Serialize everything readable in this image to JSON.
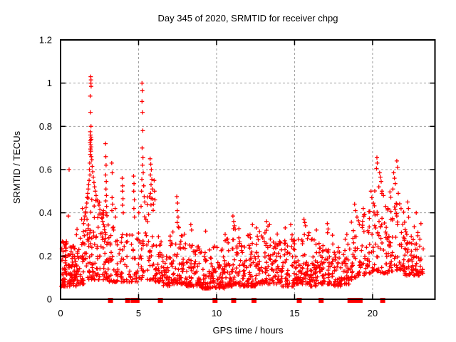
{
  "chart_data": {
    "type": "scatter",
    "title": "Day 345 of 2020, SRMTID for receiver chpg",
    "xlabel": "GPS time / hours",
    "ylabel": "SRMTID / TECUs",
    "xlim": [
      0,
      24
    ],
    "ylim": [
      0,
      1.2
    ],
    "xtick_values": [
      0,
      5,
      10,
      15,
      20
    ],
    "xtick_labels": [
      "0",
      "5",
      "10",
      "15",
      "20"
    ],
    "ytick_values": [
      0,
      0.2,
      0.4,
      0.6,
      0.8,
      1,
      1.2
    ],
    "ytick_labels": [
      "0",
      "0.2",
      "0.4",
      "0.6",
      "0.8",
      "1",
      "1.2"
    ],
    "legend": "none",
    "grid": {
      "show": true,
      "color": "#9e9e9e",
      "dash": "3 3"
    },
    "axis_color": "#000000",
    "background": "#ffffff",
    "marker": {
      "shape": "plus",
      "color": "#ff0000",
      "size": 7
    },
    "series": [
      {
        "name": "srmtid",
        "marker": "plus",
        "color": "#ff0000",
        "points": [
          [
            1.93,
            1.03
          ],
          [
            1.95,
            1.015
          ],
          [
            1.94,
            1.0
          ],
          [
            1.96,
            0.985
          ],
          [
            1.9,
            0.94
          ],
          [
            1.92,
            0.865
          ],
          [
            1.95,
            0.8
          ],
          [
            1.9,
            0.775
          ],
          [
            1.92,
            0.76
          ],
          [
            1.95,
            0.75
          ],
          [
            1.97,
            0.74
          ],
          [
            1.91,
            0.735
          ],
          [
            1.89,
            0.725
          ],
          [
            1.93,
            0.715
          ],
          [
            1.96,
            0.705
          ],
          [
            1.92,
            0.695
          ],
          [
            1.94,
            0.685
          ],
          [
            1.9,
            0.67
          ],
          [
            1.97,
            0.66
          ],
          [
            2.0,
            0.645
          ],
          [
            1.87,
            0.63
          ],
          [
            2.03,
            0.615
          ],
          [
            1.85,
            0.6
          ],
          [
            2.06,
            0.59
          ],
          [
            1.88,
            0.575
          ],
          [
            2.1,
            0.565
          ],
          [
            1.83,
            0.55
          ],
          [
            2.14,
            0.54
          ],
          [
            1.8,
            0.53
          ],
          [
            2.18,
            0.52
          ],
          [
            1.77,
            0.51
          ],
          [
            2.22,
            0.5
          ],
          [
            1.74,
            0.49
          ],
          [
            2.28,
            0.48
          ],
          [
            1.71,
            0.47
          ],
          [
            2.34,
            0.46
          ],
          [
            2.4,
            0.45
          ],
          [
            1.68,
            0.445
          ],
          [
            2.46,
            0.435
          ],
          [
            1.64,
            0.425
          ],
          [
            2.52,
            0.415
          ],
          [
            1.6,
            0.405
          ],
          [
            2.58,
            0.395
          ],
          [
            1.56,
            0.385
          ],
          [
            2.64,
            0.375
          ],
          [
            1.52,
            0.37
          ],
          [
            2.7,
            0.36
          ],
          [
            1.48,
            0.35
          ],
          [
            2.76,
            0.345
          ],
          [
            2.82,
            0.335
          ],
          [
            2.88,
            0.72
          ],
          [
            2.9,
            0.66
          ],
          [
            2.92,
            0.62
          ],
          [
            2.89,
            0.575
          ],
          [
            2.93,
            0.545
          ],
          [
            2.91,
            0.51
          ],
          [
            2.94,
            0.48
          ],
          [
            2.9,
            0.455
          ],
          [
            2.95,
            0.43
          ],
          [
            2.92,
            0.4
          ],
          [
            3.28,
            0.63
          ],
          [
            3.31,
            0.585
          ],
          [
            3.3,
            0.47
          ],
          [
            3.33,
            0.44
          ],
          [
            3.29,
            0.41
          ],
          [
            3.5,
            0.42
          ],
          [
            3.52,
            0.38
          ],
          [
            3.95,
            0.56
          ],
          [
            3.98,
            0.525
          ],
          [
            3.96,
            0.5
          ],
          [
            4.0,
            0.465
          ],
          [
            3.97,
            0.435
          ],
          [
            4.02,
            0.4
          ],
          [
            4.68,
            0.57
          ],
          [
            4.71,
            0.535
          ],
          [
            4.69,
            0.5
          ],
          [
            4.73,
            0.46
          ],
          [
            4.7,
            0.42
          ],
          [
            4.74,
            0.38
          ],
          [
            5.22,
            1.0
          ],
          [
            5.24,
            0.965
          ],
          [
            5.22,
            0.915
          ],
          [
            5.25,
            0.865
          ],
          [
            5.27,
            0.78
          ],
          [
            5.23,
            0.7
          ],
          [
            5.28,
            0.655
          ],
          [
            5.25,
            0.62
          ],
          [
            5.3,
            0.585
          ],
          [
            5.21,
            0.555
          ],
          [
            5.33,
            0.525
          ],
          [
            5.19,
            0.5
          ],
          [
            5.36,
            0.475
          ],
          [
            5.4,
            0.45
          ],
          [
            5.16,
            0.43
          ],
          [
            5.74,
            0.65
          ],
          [
            5.78,
            0.625
          ],
          [
            5.82,
            0.6
          ],
          [
            5.76,
            0.575
          ],
          [
            5.85,
            0.555
          ],
          [
            5.8,
            0.53
          ],
          [
            5.88,
            0.51
          ],
          [
            5.77,
            0.49
          ],
          [
            5.9,
            0.465
          ],
          [
            5.95,
            0.44
          ],
          [
            6.0,
            0.55
          ],
          [
            6.02,
            0.5
          ],
          [
            6.05,
            0.46
          ],
          [
            7.45,
            0.475
          ],
          [
            7.5,
            0.445
          ],
          [
            7.48,
            0.41
          ],
          [
            7.53,
            0.38
          ],
          [
            7.47,
            0.355
          ],
          [
            7.55,
            0.335
          ],
          [
            0.55,
            0.6
          ],
          [
            0.5,
            0.385
          ],
          [
            1.4,
            0.42
          ],
          [
            1.35,
            0.37
          ],
          [
            8.35,
            0.345
          ],
          [
            8.4,
            0.32
          ],
          [
            9.3,
            0.315
          ],
          [
            10.55,
            0.3
          ],
          [
            11.05,
            0.385
          ],
          [
            11.1,
            0.36
          ],
          [
            11.15,
            0.34
          ],
          [
            12.3,
            0.345
          ],
          [
            12.55,
            0.33
          ],
          [
            13.2,
            0.36
          ],
          [
            13.4,
            0.345
          ],
          [
            14.4,
            0.33
          ],
          [
            14.75,
            0.345
          ],
          [
            15.6,
            0.37
          ],
          [
            15.65,
            0.355
          ],
          [
            15.7,
            0.34
          ],
          [
            16.4,
            0.32
          ],
          [
            17.1,
            0.35
          ],
          [
            17.15,
            0.325
          ],
          [
            18.35,
            0.3
          ],
          [
            18.85,
            0.44
          ],
          [
            18.9,
            0.41
          ],
          [
            19.0,
            0.38
          ],
          [
            19.4,
            0.42
          ],
          [
            19.45,
            0.39
          ],
          [
            19.9,
            0.5
          ],
          [
            19.95,
            0.47
          ],
          [
            20.28,
            0.655
          ],
          [
            20.3,
            0.63
          ],
          [
            20.25,
            0.605
          ],
          [
            20.45,
            0.585
          ],
          [
            20.5,
            0.565
          ],
          [
            20.55,
            0.545
          ],
          [
            20.4,
            0.52
          ],
          [
            20.6,
            0.5
          ],
          [
            20.7,
            0.48
          ],
          [
            21.55,
            0.64
          ],
          [
            21.6,
            0.61
          ],
          [
            21.35,
            0.585
          ],
          [
            21.4,
            0.56
          ],
          [
            21.45,
            0.535
          ],
          [
            21.3,
            0.51
          ],
          [
            21.65,
            0.49
          ],
          [
            22.25,
            0.45
          ],
          [
            22.3,
            0.42
          ],
          [
            22.8,
            0.4
          ],
          [
            23.1,
            0.35
          ]
        ],
        "baseline_band": {
          "description": "dense noisy band of 1-min samples; bins are [t_start_h, t_end_h, n_points, min_tecu, max_tecu]",
          "seed": 7,
          "skew": 2.1,
          "bins": [
            [
              0.05,
              0.5,
              58,
              0.06,
              0.27
            ],
            [
              0.5,
              1.0,
              58,
              0.06,
              0.25
            ],
            [
              1.0,
              1.5,
              48,
              0.07,
              0.33
            ],
            [
              1.5,
              2.0,
              40,
              0.09,
              0.52
            ],
            [
              2.0,
              2.5,
              40,
              0.09,
              0.48
            ],
            [
              2.5,
              3.0,
              36,
              0.09,
              0.44
            ],
            [
              3.0,
              3.5,
              30,
              0.08,
              0.36
            ],
            [
              3.5,
              4.0,
              28,
              0.08,
              0.3
            ],
            [
              4.0,
              4.5,
              22,
              0.08,
              0.32
            ],
            [
              4.5,
              5.0,
              22,
              0.08,
              0.34
            ],
            [
              5.0,
              5.5,
              26,
              0.09,
              0.42
            ],
            [
              5.5,
              6.0,
              30,
              0.09,
              0.48
            ],
            [
              6.0,
              6.5,
              32,
              0.08,
              0.3
            ],
            [
              6.5,
              7.0,
              36,
              0.06,
              0.22
            ],
            [
              7.0,
              7.5,
              36,
              0.07,
              0.32
            ],
            [
              7.5,
              8.0,
              36,
              0.07,
              0.34
            ],
            [
              8.0,
              8.5,
              40,
              0.06,
              0.28
            ],
            [
              8.5,
              9.0,
              40,
              0.06,
              0.25
            ],
            [
              9.0,
              9.5,
              36,
              0.05,
              0.22
            ],
            [
              9.5,
              10.0,
              36,
              0.05,
              0.25
            ],
            [
              10.0,
              10.5,
              40,
              0.05,
              0.24
            ],
            [
              10.5,
              11.0,
              40,
              0.06,
              0.28
            ],
            [
              11.0,
              11.5,
              40,
              0.07,
              0.33
            ],
            [
              11.5,
              12.0,
              36,
              0.06,
              0.28
            ],
            [
              12.0,
              12.5,
              40,
              0.06,
              0.3
            ],
            [
              12.5,
              13.0,
              36,
              0.07,
              0.32
            ],
            [
              13.0,
              13.5,
              36,
              0.07,
              0.34
            ],
            [
              13.5,
              14.0,
              36,
              0.07,
              0.33
            ],
            [
              14.0,
              14.5,
              36,
              0.06,
              0.28
            ],
            [
              14.5,
              15.0,
              36,
              0.06,
              0.3
            ],
            [
              15.0,
              15.5,
              40,
              0.07,
              0.3
            ],
            [
              15.5,
              16.0,
              36,
              0.07,
              0.33
            ],
            [
              16.0,
              16.5,
              40,
              0.06,
              0.28
            ],
            [
              16.5,
              17.0,
              36,
              0.07,
              0.3
            ],
            [
              17.0,
              17.5,
              36,
              0.07,
              0.32
            ],
            [
              17.5,
              18.0,
              36,
              0.06,
              0.26
            ],
            [
              18.0,
              18.5,
              36,
              0.07,
              0.28
            ],
            [
              18.5,
              19.0,
              26,
              0.09,
              0.38
            ],
            [
              19.0,
              19.5,
              26,
              0.11,
              0.42
            ],
            [
              19.5,
              20.0,
              30,
              0.12,
              0.45
            ],
            [
              20.0,
              20.5,
              32,
              0.13,
              0.55
            ],
            [
              20.5,
              21.0,
              32,
              0.12,
              0.5
            ],
            [
              21.0,
              21.5,
              32,
              0.13,
              0.5
            ],
            [
              21.5,
              22.0,
              32,
              0.13,
              0.46
            ],
            [
              22.0,
              22.5,
              36,
              0.11,
              0.4
            ],
            [
              22.5,
              23.0,
              36,
              0.11,
              0.36
            ],
            [
              23.0,
              23.25,
              16,
              0.12,
              0.28
            ]
          ]
        }
      },
      {
        "name": "zero-flags",
        "marker": "filled-square",
        "color": "#ff0000",
        "size": 7,
        "y": 0,
        "x": [
          3.2,
          4.3,
          4.65,
          4.9,
          6.4,
          9.9,
          11.1,
          12.4,
          15.3,
          16.7,
          18.55,
          18.75,
          18.95,
          19.2,
          20.65
        ]
      }
    ]
  }
}
